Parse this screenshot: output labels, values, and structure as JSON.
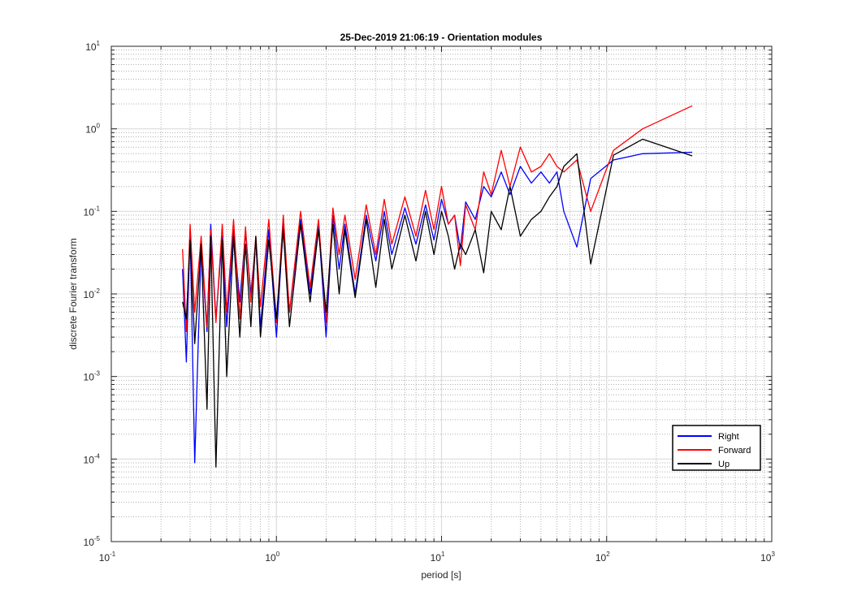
{
  "chart_data": {
    "type": "line",
    "title": "25-Dec-2019 21:06:19 - Orientation modules",
    "xlabel": "period [s]",
    "ylabel": "discrete Fourier transform",
    "xscale": "log",
    "yscale": "log",
    "xlim": [
      0.1,
      1000
    ],
    "ylim": [
      1e-05,
      10
    ],
    "grid": true,
    "minor_grid": true,
    "legend_position": "bottom-right",
    "x_ticks": [
      {
        "base": "10",
        "exp": "-1",
        "value": 0.1
      },
      {
        "base": "10",
        "exp": "0",
        "value": 1
      },
      {
        "base": "10",
        "exp": "1",
        "value": 10
      },
      {
        "base": "10",
        "exp": "2",
        "value": 100
      },
      {
        "base": "10",
        "exp": "3",
        "value": 1000
      }
    ],
    "y_ticks": [
      {
        "base": "10",
        "exp": "-5",
        "value": 1e-05
      },
      {
        "base": "10",
        "exp": "-4",
        "value": 0.0001
      },
      {
        "base": "10",
        "exp": "-3",
        "value": 0.001
      },
      {
        "base": "10",
        "exp": "-2",
        "value": 0.01
      },
      {
        "base": "10",
        "exp": "-1",
        "value": 0.1
      },
      {
        "base": "10",
        "exp": "0",
        "value": 1
      },
      {
        "base": "10",
        "exp": "1",
        "value": 10
      }
    ],
    "series": [
      {
        "name": "Right",
        "color": "#0000ff",
        "x": [
          0.27,
          0.285,
          0.3,
          0.32,
          0.35,
          0.38,
          0.4,
          0.43,
          0.47,
          0.5,
          0.55,
          0.6,
          0.65,
          0.7,
          0.75,
          0.8,
          0.9,
          1.0,
          1.1,
          1.2,
          1.4,
          1.6,
          1.8,
          2.0,
          2.2,
          2.4,
          2.6,
          3.0,
          3.5,
          4.0,
          4.5,
          5.0,
          6.0,
          7.0,
          8.0,
          9.0,
          10.0,
          11.0,
          12.0,
          13.0,
          14.0,
          16.0,
          18.0,
          20.0,
          23.0,
          26.0,
          30.0,
          35.0,
          40.0,
          45.0,
          50.0,
          55.0,
          66.0,
          80.0,
          110.0,
          165.0,
          330.0
        ],
        "y": [
          0.02,
          0.0015,
          0.06,
          9e-05,
          0.04,
          0.0035,
          0.07,
          0.005,
          0.05,
          0.004,
          0.06,
          0.008,
          0.055,
          0.01,
          0.045,
          0.004,
          0.06,
          0.003,
          0.07,
          0.006,
          0.08,
          0.01,
          0.07,
          0.003,
          0.09,
          0.02,
          0.07,
          0.01,
          0.09,
          0.025,
          0.1,
          0.03,
          0.11,
          0.04,
          0.12,
          0.045,
          0.14,
          0.07,
          0.09,
          0.035,
          0.13,
          0.08,
          0.2,
          0.15,
          0.3,
          0.16,
          0.35,
          0.22,
          0.3,
          0.22,
          0.3,
          0.1,
          0.037,
          0.25,
          0.42,
          0.5,
          0.52
        ]
      },
      {
        "name": "Forward",
        "color": "#ff0000",
        "x": [
          0.27,
          0.285,
          0.3,
          0.32,
          0.35,
          0.38,
          0.4,
          0.43,
          0.47,
          0.5,
          0.55,
          0.6,
          0.65,
          0.7,
          0.75,
          0.8,
          0.9,
          1.0,
          1.1,
          1.2,
          1.4,
          1.6,
          1.8,
          2.0,
          2.2,
          2.4,
          2.6,
          3.0,
          3.5,
          4.0,
          4.5,
          5.0,
          6.0,
          7.0,
          8.0,
          9.0,
          10.0,
          11.0,
          12.0,
          13.0,
          14.0,
          16.0,
          18.0,
          20.0,
          23.0,
          26.0,
          30.0,
          35.0,
          40.0,
          45.0,
          50.0,
          55.0,
          66.0,
          80.0,
          110.0,
          165.0,
          330.0
        ],
        "y": [
          0.035,
          0.0035,
          0.07,
          0.006,
          0.05,
          0.004,
          0.06,
          0.0045,
          0.07,
          0.006,
          0.08,
          0.005,
          0.065,
          0.008,
          0.05,
          0.007,
          0.08,
          0.0045,
          0.09,
          0.006,
          0.1,
          0.012,
          0.08,
          0.0045,
          0.11,
          0.03,
          0.09,
          0.015,
          0.12,
          0.03,
          0.14,
          0.04,
          0.15,
          0.05,
          0.18,
          0.06,
          0.2,
          0.07,
          0.09,
          0.022,
          0.12,
          0.06,
          0.3,
          0.16,
          0.55,
          0.2,
          0.6,
          0.3,
          0.35,
          0.5,
          0.35,
          0.3,
          0.42,
          0.1,
          0.55,
          1.0,
          1.9
        ]
      },
      {
        "name": "Up",
        "color": "#000000",
        "x": [
          0.27,
          0.285,
          0.3,
          0.32,
          0.35,
          0.38,
          0.4,
          0.43,
          0.47,
          0.5,
          0.55,
          0.6,
          0.65,
          0.7,
          0.75,
          0.8,
          0.9,
          1.0,
          1.1,
          1.2,
          1.4,
          1.6,
          1.8,
          2.0,
          2.2,
          2.4,
          2.6,
          3.0,
          3.5,
          4.0,
          4.5,
          5.0,
          6.0,
          7.0,
          8.0,
          9.0,
          10.0,
          11.0,
          12.0,
          13.0,
          14.0,
          16.0,
          18.0,
          20.0,
          23.0,
          26.0,
          30.0,
          35.0,
          40.0,
          45.0,
          50.0,
          55.0,
          66.0,
          80.0,
          110.0,
          165.0,
          330.0
        ],
        "y": [
          0.008,
          0.005,
          0.045,
          0.0025,
          0.04,
          0.0004,
          0.05,
          8e-05,
          0.045,
          0.001,
          0.05,
          0.003,
          0.04,
          0.004,
          0.05,
          0.003,
          0.045,
          0.005,
          0.06,
          0.004,
          0.07,
          0.008,
          0.06,
          0.006,
          0.07,
          0.01,
          0.06,
          0.009,
          0.08,
          0.012,
          0.08,
          0.02,
          0.09,
          0.025,
          0.1,
          0.03,
          0.1,
          0.05,
          0.02,
          0.04,
          0.03,
          0.06,
          0.018,
          0.1,
          0.06,
          0.2,
          0.05,
          0.08,
          0.1,
          0.15,
          0.2,
          0.35,
          0.5,
          0.023,
          0.48,
          0.75,
          0.47
        ]
      }
    ]
  }
}
